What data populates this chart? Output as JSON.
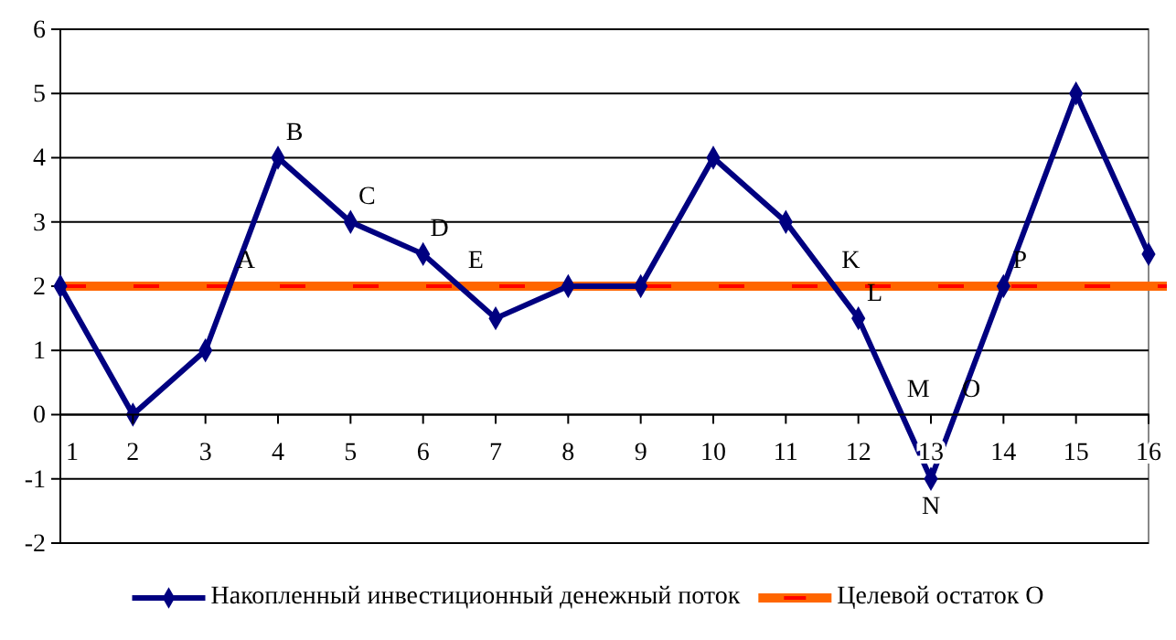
{
  "chart_data": {
    "type": "line",
    "x": [
      1,
      2,
      3,
      4,
      5,
      6,
      7,
      8,
      9,
      10,
      11,
      12,
      13,
      14,
      15,
      16
    ],
    "series": [
      {
        "name": "Накопленный инвестиционный денежный поток",
        "color": "#000080",
        "values": [
          2,
          0,
          1,
          4,
          3,
          2.5,
          1.5,
          2,
          2,
          4,
          3,
          1.5,
          -1,
          2,
          5,
          2.5
        ]
      }
    ],
    "xlim": [
      1,
      16
    ],
    "xticks": [
      1,
      2,
      3,
      4,
      5,
      6,
      7,
      8,
      9,
      10,
      11,
      12,
      13,
      14,
      15,
      16
    ],
    "ylim": [
      -2,
      6
    ],
    "yticks": [
      -2,
      -1,
      0,
      1,
      2,
      3,
      4,
      5,
      6
    ],
    "grid": "y",
    "marker": "diamond",
    "line_style": "solid",
    "legend": "bottom",
    "ref_lines": [
      {
        "axis": "y",
        "value": 2,
        "label": "Целевой остаток О",
        "color": "#ff6600",
        "line_style": "solid"
      },
      {
        "axis": "y",
        "value": 2,
        "color": "#ff0000",
        "line_style": "dashed"
      }
    ],
    "annotations": [
      {
        "text": "A",
        "x": 3.33,
        "y": 2
      },
      {
        "text": "B",
        "x": 4,
        "y": 4
      },
      {
        "text": "C",
        "x": 5,
        "y": 3
      },
      {
        "text": "D",
        "x": 6,
        "y": 2.5
      },
      {
        "text": "E",
        "x": 6.5,
        "y": 2
      },
      {
        "text": "K",
        "x": 11.67,
        "y": 2
      },
      {
        "text": "L",
        "x": 12,
        "y": 1.5
      },
      {
        "text": "M",
        "x": 12.6,
        "y": 0
      },
      {
        "text": "N",
        "x": 13,
        "y": -1
      },
      {
        "text": "O",
        "x": 13.33,
        "y": 0
      },
      {
        "text": "P",
        "x": 14,
        "y": 2
      }
    ]
  }
}
